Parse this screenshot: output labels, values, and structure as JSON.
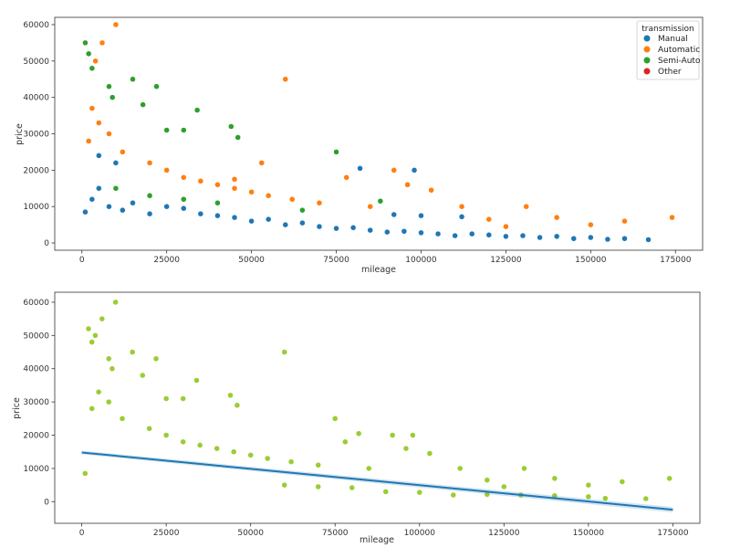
{
  "chart_data": [
    {
      "type": "scatter",
      "xlabel": "mileage",
      "ylabel": "price",
      "xlim": [
        -8000,
        183000
      ],
      "ylim": [
        -2000,
        62000
      ],
      "xticks": [
        0,
        25000,
        50000,
        75000,
        100000,
        125000,
        150000,
        175000
      ],
      "yticks": [
        0,
        10000,
        20000,
        30000,
        40000,
        50000,
        60000
      ],
      "legend": {
        "title": "transmission",
        "placement": "top-right",
        "entries": [
          {
            "name": "Manual",
            "color": "#1f77b4"
          },
          {
            "name": "Automatic",
            "color": "#ff7f0e"
          },
          {
            "name": "Semi-Auto",
            "color": "#2ca02c"
          },
          {
            "name": "Other",
            "color": "#d62728"
          }
        ]
      },
      "series": [
        {
          "name": "Manual",
          "color": "#1f77b4",
          "points": [
            [
              1000,
              8500
            ],
            [
              3000,
              12000
            ],
            [
              5000,
              15000
            ],
            [
              8000,
              10000
            ],
            [
              12000,
              9000
            ],
            [
              15000,
              11000
            ],
            [
              20000,
              8000
            ],
            [
              25000,
              10000
            ],
            [
              30000,
              9500
            ],
            [
              35000,
              8000
            ],
            [
              40000,
              7500
            ],
            [
              45000,
              7000
            ],
            [
              50000,
              6000
            ],
            [
              55000,
              6500
            ],
            [
              60000,
              5000
            ],
            [
              65000,
              5500
            ],
            [
              70000,
              4500
            ],
            [
              75000,
              4000
            ],
            [
              80000,
              4200
            ],
            [
              85000,
              3500
            ],
            [
              90000,
              3000
            ],
            [
              95000,
              3200
            ],
            [
              100000,
              2800
            ],
            [
              105000,
              2500
            ],
            [
              110000,
              2000
            ],
            [
              115000,
              2500
            ],
            [
              120000,
              2200
            ],
            [
              125000,
              1800
            ],
            [
              130000,
              2000
            ],
            [
              135000,
              1500
            ],
            [
              140000,
              1800
            ],
            [
              145000,
              1200
            ],
            [
              150000,
              1500
            ],
            [
              155000,
              1000
            ],
            [
              160000,
              1200
            ],
            [
              167000,
              900
            ],
            [
              82000,
              20500
            ],
            [
              98000,
              20000
            ],
            [
              5000,
              24000
            ],
            [
              10000,
              22000
            ],
            [
              100000,
              7500
            ],
            [
              92000,
              7800
            ],
            [
              112000,
              7200
            ]
          ]
        },
        {
          "name": "Automatic",
          "color": "#ff7f0e",
          "points": [
            [
              2000,
              28000
            ],
            [
              5000,
              33000
            ],
            [
              8000,
              30000
            ],
            [
              10000,
              60000
            ],
            [
              6000,
              55000
            ],
            [
              4000,
              50000
            ],
            [
              3000,
              37000
            ],
            [
              12000,
              25000
            ],
            [
              20000,
              22000
            ],
            [
              25000,
              20000
            ],
            [
              30000,
              18000
            ],
            [
              35000,
              17000
            ],
            [
              40000,
              16000
            ],
            [
              45000,
              15000
            ],
            [
              50000,
              14000
            ],
            [
              55000,
              13000
            ],
            [
              60000,
              45000
            ],
            [
              62000,
              12000
            ],
            [
              70000,
              11000
            ],
            [
              78000,
              18000
            ],
            [
              85000,
              10000
            ],
            [
              92000,
              20000
            ],
            [
              96000,
              16000
            ],
            [
              103000,
              14500
            ],
            [
              112000,
              10000
            ],
            [
              120000,
              6500
            ],
            [
              125000,
              4500
            ],
            [
              131000,
              10000
            ],
            [
              140000,
              7000
            ],
            [
              150000,
              5000
            ],
            [
              160000,
              6000
            ],
            [
              174000,
              7000
            ],
            [
              45000,
              17500
            ],
            [
              53000,
              22000
            ]
          ]
        },
        {
          "name": "Semi-Auto",
          "color": "#2ca02c",
          "points": [
            [
              1000,
              55000
            ],
            [
              2000,
              52000
            ],
            [
              3000,
              48000
            ],
            [
              8000,
              43000
            ],
            [
              9000,
              40000
            ],
            [
              15000,
              45000
            ],
            [
              18000,
              38000
            ],
            [
              22000,
              43000
            ],
            [
              25000,
              31000
            ],
            [
              30000,
              31000
            ],
            [
              34000,
              36500
            ],
            [
              44000,
              32000
            ],
            [
              46000,
              29000
            ],
            [
              75000,
              25000
            ],
            [
              10000,
              15000
            ],
            [
              20000,
              13000
            ],
            [
              30000,
              12000
            ],
            [
              40000,
              11000
            ],
            [
              65000,
              9000
            ],
            [
              88000,
              11500
            ]
          ]
        },
        {
          "name": "Other",
          "color": "#d62728",
          "points": []
        }
      ]
    },
    {
      "type": "scatter",
      "xlabel": "mileage",
      "ylabel": "price",
      "xlim": [
        -8000,
        183000
      ],
      "ylim": [
        -6500,
        63000
      ],
      "xticks": [
        0,
        25000,
        50000,
        75000,
        100000,
        125000,
        150000,
        175000
      ],
      "yticks": [
        0,
        10000,
        20000,
        30000,
        40000,
        50000,
        60000
      ],
      "point_color": "#9acd32",
      "regression_line": {
        "color": "#1f77b4",
        "x": [
          0,
          175000
        ],
        "y": [
          14800,
          -2400
        ]
      },
      "points": [
        [
          1000,
          8500
        ],
        [
          3000,
          28000
        ],
        [
          5000,
          33000
        ],
        [
          8000,
          30000
        ],
        [
          10000,
          60000
        ],
        [
          6000,
          55000
        ],
        [
          4000,
          50000
        ],
        [
          2000,
          52000
        ],
        [
          3000,
          48000
        ],
        [
          8000,
          43000
        ],
        [
          9000,
          40000
        ],
        [
          15000,
          45000
        ],
        [
          18000,
          38000
        ],
        [
          22000,
          43000
        ],
        [
          25000,
          31000
        ],
        [
          30000,
          31000
        ],
        [
          34000,
          36500
        ],
        [
          44000,
          32000
        ],
        [
          46000,
          29000
        ],
        [
          60000,
          45000
        ],
        [
          75000,
          25000
        ],
        [
          12000,
          25000
        ],
        [
          20000,
          22000
        ],
        [
          25000,
          20000
        ],
        [
          30000,
          18000
        ],
        [
          35000,
          17000
        ],
        [
          40000,
          16000
        ],
        [
          45000,
          15000
        ],
        [
          50000,
          14000
        ],
        [
          55000,
          13000
        ],
        [
          62000,
          12000
        ],
        [
          70000,
          11000
        ],
        [
          78000,
          18000
        ],
        [
          82000,
          20500
        ],
        [
          85000,
          10000
        ],
        [
          92000,
          20000
        ],
        [
          96000,
          16000
        ],
        [
          98000,
          20000
        ],
        [
          103000,
          14500
        ],
        [
          112000,
          10000
        ],
        [
          120000,
          6500
        ],
        [
          125000,
          4500
        ],
        [
          131000,
          10000
        ],
        [
          140000,
          7000
        ],
        [
          150000,
          5000
        ],
        [
          160000,
          6000
        ],
        [
          167000,
          900
        ],
        [
          174000,
          7000
        ],
        [
          60000,
          5000
        ],
        [
          70000,
          4500
        ],
        [
          80000,
          4200
        ],
        [
          90000,
          3000
        ],
        [
          100000,
          2800
        ],
        [
          110000,
          2000
        ],
        [
          120000,
          2200
        ],
        [
          130000,
          2000
        ],
        [
          140000,
          1800
        ],
        [
          150000,
          1500
        ],
        [
          155000,
          1000
        ]
      ]
    }
  ]
}
